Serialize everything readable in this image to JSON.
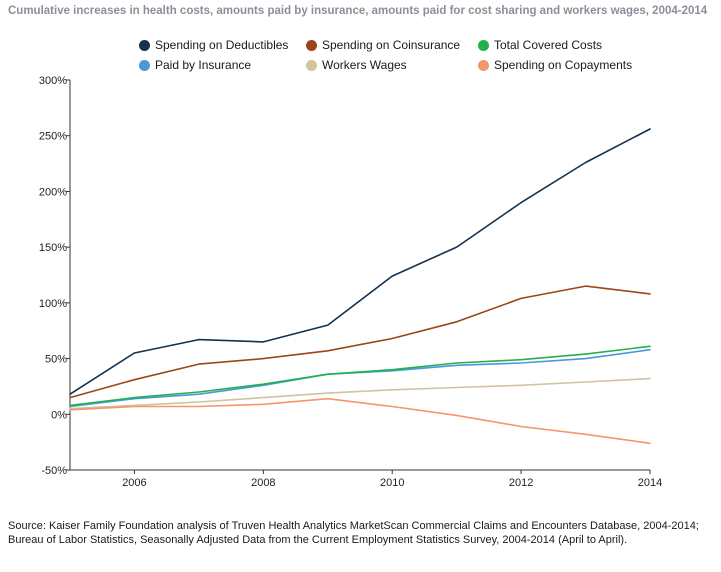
{
  "title": "Cumulative increases in health costs, amounts paid by insurance, amounts paid for cost sharing and workers wages, 2004-2014",
  "source": "Source: Kaiser Family Foundation analysis of Truven Health Analytics MarketScan Commercial Claims and Encounters Database, 2004-2014; Bureau of Labor Statistics, Seasonally Adjusted Data from the Current Employment Statistics Survey, 2004-2014 (April to April).",
  "chart_data": {
    "type": "line",
    "title": "Cumulative increases in health costs, amounts paid by insurance, amounts paid for cost sharing and workers wages, 2004-2014",
    "xlabel": "",
    "ylabel": "",
    "x": [
      2005,
      2006,
      2007,
      2008,
      2009,
      2010,
      2011,
      2012,
      2013,
      2014
    ],
    "x_ticks": [
      2006,
      2008,
      2010,
      2012,
      2014
    ],
    "y_ticks": [
      -50,
      0,
      50,
      100,
      150,
      200,
      250,
      300
    ],
    "y_tick_labels": [
      "-50%",
      "0%",
      "50%",
      "100%",
      "150%",
      "200%",
      "250%",
      "300%"
    ],
    "xlim": [
      2005,
      2014
    ],
    "ylim": [
      -50,
      300
    ],
    "grid": false,
    "legend_position": "top",
    "series": [
      {
        "name": "Spending on Deductibles",
        "color": "#14314d",
        "values": [
          18,
          55,
          67,
          65,
          80,
          124,
          150,
          190,
          226,
          256
        ]
      },
      {
        "name": "Spending on Coinsurance",
        "color": "#9c4518",
        "values": [
          15,
          31,
          45,
          50,
          57,
          68,
          83,
          104,
          115,
          108
        ]
      },
      {
        "name": "Total Covered Costs",
        "color": "#22b14c",
        "values": [
          8,
          15,
          20,
          27,
          36,
          40,
          46,
          49,
          54,
          61
        ]
      },
      {
        "name": "Paid by Insurance",
        "color": "#4a98d8",
        "values": [
          7,
          14,
          18,
          26,
          36,
          39,
          44,
          46,
          50,
          58
        ]
      },
      {
        "name": "Workers Wages",
        "color": "#d2c3a0",
        "values": [
          5,
          8,
          11,
          15,
          19,
          22,
          24,
          26,
          29,
          32
        ]
      },
      {
        "name": "Spending on Copayments",
        "color": "#f4956a",
        "values": [
          4,
          7,
          7,
          9,
          14,
          7,
          -1,
          -11,
          -18,
          -26
        ]
      }
    ]
  }
}
